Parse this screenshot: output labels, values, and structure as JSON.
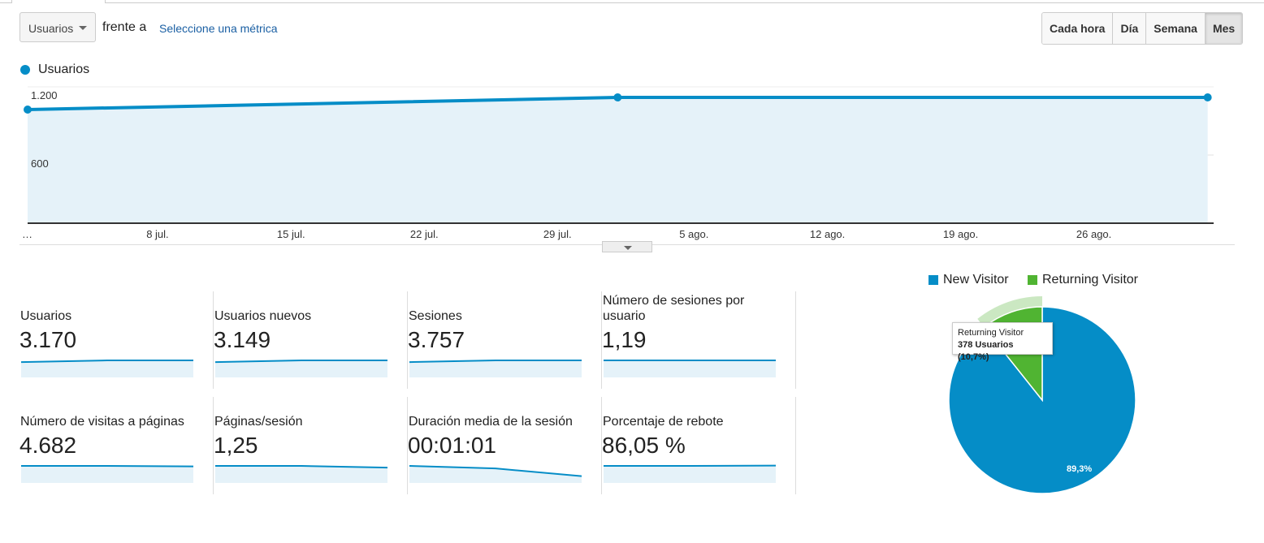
{
  "controls": {
    "metric_select": "Usuarios",
    "versus": "frente a",
    "select_metric": "Seleccione una métrica",
    "granularity": [
      {
        "label": "Cada hora",
        "active": false
      },
      {
        "label": "Día",
        "active": false
      },
      {
        "label": "Semana",
        "active": false
      },
      {
        "label": "Mes",
        "active": true
      }
    ]
  },
  "chart_data": [
    {
      "type": "area",
      "series": [
        {
          "name": "Usuarios",
          "color": "#058dc7",
          "x": [
            "2018-07-01",
            "2018-08-01",
            "2018-09-01"
          ],
          "y": [
            1000,
            1107,
            1107
          ]
        }
      ],
      "yticks": [
        "600",
        "1.200"
      ],
      "ylim": [
        0,
        1200
      ],
      "xticks": [
        "…",
        "8 jul.",
        "15 jul.",
        "22 jul.",
        "29 jul.",
        "5 ago.",
        "12 ago.",
        "19 ago.",
        "26 ago."
      ],
      "grid": true,
      "legend": "top-left"
    },
    {
      "type": "pie",
      "slices": [
        {
          "name": "New Visitor",
          "value": 89.3,
          "label": "89,3%",
          "color": "#058dc7"
        },
        {
          "name": "Returning Visitor",
          "value": 10.7,
          "color": "#50b432"
        }
      ],
      "legend": "top",
      "tooltip": {
        "title": "Returning Visitor",
        "text": "378 Usuarios (10,7%)"
      }
    }
  ],
  "metrics": [
    {
      "label": "Usuarios",
      "value": "3.170",
      "trend": [
        0.9,
        1,
        1
      ]
    },
    {
      "label": "Usuarios nuevos",
      "value": "3.149",
      "trend": [
        0.9,
        1,
        1
      ]
    },
    {
      "label": "Sesiones",
      "value": "3.757",
      "trend": [
        0.9,
        1,
        1
      ]
    },
    {
      "label": "Número de sesiones por usuario",
      "value": "1,19",
      "trend": [
        1,
        1,
        1
      ]
    },
    {
      "label": "Número de visitas a páginas",
      "value": "4.682",
      "trend": [
        1,
        1,
        0.97
      ]
    },
    {
      "label": "Páginas/sesión",
      "value": "1,25",
      "trend": [
        1,
        1,
        0.9
      ]
    },
    {
      "label": "Duración media de la sesión",
      "value": "00:01:01",
      "trend": [
        1,
        0.85,
        0.4
      ]
    },
    {
      "label": "Porcentaje de rebote",
      "value": "86,05 %",
      "trend": [
        1,
        1,
        1.02
      ]
    }
  ]
}
